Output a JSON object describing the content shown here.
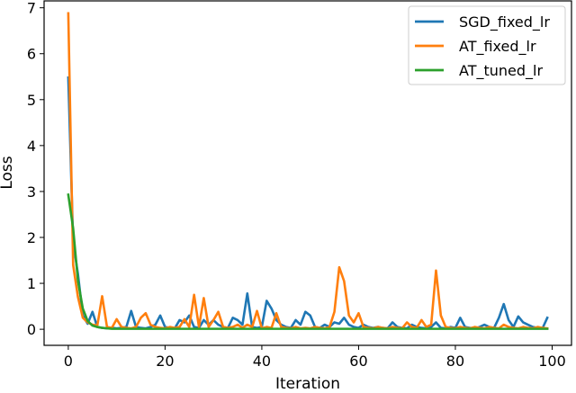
{
  "chart_data": {
    "type": "line",
    "title": "",
    "xlabel": "Iteration",
    "ylabel": "Loss",
    "xlim": [
      -5,
      104
    ],
    "ylim": [
      -0.35,
      7.15
    ],
    "xticks": [
      0,
      20,
      40,
      60,
      80,
      100
    ],
    "yticks": [
      0,
      1,
      2,
      3,
      4,
      5,
      6,
      7
    ],
    "grid": false,
    "legend_position": "top-right",
    "x": [
      0,
      1,
      2,
      3,
      4,
      5,
      6,
      7,
      8,
      9,
      10,
      11,
      12,
      13,
      14,
      15,
      16,
      17,
      18,
      19,
      20,
      21,
      22,
      23,
      24,
      25,
      26,
      27,
      28,
      29,
      30,
      31,
      32,
      33,
      34,
      35,
      36,
      37,
      38,
      39,
      40,
      41,
      42,
      43,
      44,
      45,
      46,
      47,
      48,
      49,
      50,
      51,
      52,
      53,
      54,
      55,
      56,
      57,
      58,
      59,
      60,
      61,
      62,
      63,
      64,
      65,
      66,
      67,
      68,
      69,
      70,
      71,
      72,
      73,
      74,
      75,
      76,
      77,
      78,
      79,
      80,
      81,
      82,
      83,
      84,
      85,
      86,
      87,
      88,
      89,
      90,
      91,
      92,
      93,
      94,
      95,
      96,
      97,
      98,
      99
    ],
    "series": [
      {
        "name": "SGD_fixed_lr",
        "color": "#1f77b4",
        "values": [
          5.48,
          1.9,
          1.2,
          0.3,
          0.12,
          0.38,
          0.05,
          0.03,
          0.02,
          0.03,
          0.02,
          0.03,
          0.05,
          0.4,
          0.05,
          0.03,
          0.02,
          0.05,
          0.1,
          0.3,
          0.05,
          0.03,
          0.02,
          0.2,
          0.15,
          0.3,
          0.05,
          0.03,
          0.2,
          0.1,
          0.2,
          0.1,
          0.05,
          0.03,
          0.25,
          0.2,
          0.1,
          0.78,
          0.05,
          0.03,
          0.05,
          0.62,
          0.45,
          0.2,
          0.1,
          0.05,
          0.03,
          0.2,
          0.1,
          0.38,
          0.3,
          0.05,
          0.03,
          0.1,
          0.05,
          0.15,
          0.12,
          0.25,
          0.1,
          0.05,
          0.03,
          0.1,
          0.05,
          0.03,
          0.05,
          0.03,
          0.02,
          0.15,
          0.05,
          0.03,
          0.02,
          0.1,
          0.05,
          0.03,
          0.02,
          0.05,
          0.15,
          0.03,
          0.02,
          0.05,
          0.03,
          0.25,
          0.05,
          0.03,
          0.02,
          0.05,
          0.1,
          0.05,
          0.03,
          0.25,
          0.55,
          0.2,
          0.05,
          0.28,
          0.15,
          0.1,
          0.05,
          0.03,
          0.02,
          0.25
        ]
      },
      {
        "name": "AT_fixed_lr",
        "color": "#ff7f0e",
        "values": [
          6.88,
          1.4,
          0.7,
          0.25,
          0.15,
          0.1,
          0.08,
          0.72,
          0.05,
          0.03,
          0.22,
          0.05,
          0.03,
          0.02,
          0.05,
          0.25,
          0.35,
          0.1,
          0.05,
          0.03,
          0.02,
          0.05,
          0.03,
          0.05,
          0.22,
          0.05,
          0.75,
          0.05,
          0.68,
          0.05,
          0.2,
          0.38,
          0.05,
          0.03,
          0.05,
          0.1,
          0.03,
          0.1,
          0.05,
          0.4,
          0.02,
          0.05,
          0.03,
          0.35,
          0.05,
          0.03,
          0.02,
          0.05,
          0.02,
          0.03,
          0.02,
          0.05,
          0.03,
          0.02,
          0.05,
          0.38,
          1.35,
          1.05,
          0.3,
          0.15,
          0.35,
          0.05,
          0.03,
          0.02,
          0.05,
          0.03,
          0.02,
          0.05,
          0.03,
          0.02,
          0.15,
          0.05,
          0.03,
          0.2,
          0.05,
          0.1,
          1.28,
          0.3,
          0.05,
          0.03,
          0.02,
          0.05,
          0.03,
          0.02,
          0.05,
          0.03,
          0.02,
          0.05,
          0.03,
          0.02,
          0.1,
          0.05,
          0.03,
          0.02,
          0.05,
          0.03,
          0.02,
          0.05,
          0.03,
          0.02
        ]
      },
      {
        "name": "AT_tuned_lr",
        "color": "#2ca02c",
        "values": [
          2.93,
          2.2,
          1.05,
          0.45,
          0.18,
          0.08,
          0.05,
          0.03,
          0.02,
          0.01,
          0.01,
          0.01,
          0.01,
          0.01,
          0.01,
          0.01,
          0.01,
          0.01,
          0.01,
          0.01,
          0.01,
          0.01,
          0.01,
          0.01,
          0.01,
          0.01,
          0.01,
          0.01,
          0.01,
          0.01,
          0.01,
          0.01,
          0.01,
          0.01,
          0.01,
          0.01,
          0.01,
          0.01,
          0.01,
          0.01,
          0.01,
          0.01,
          0.01,
          0.01,
          0.01,
          0.01,
          0.01,
          0.01,
          0.01,
          0.01,
          0.01,
          0.01,
          0.01,
          0.01,
          0.01,
          0.01,
          0.01,
          0.01,
          0.01,
          0.01,
          0.01,
          0.01,
          0.01,
          0.01,
          0.01,
          0.01,
          0.01,
          0.01,
          0.01,
          0.01,
          0.01,
          0.01,
          0.01,
          0.01,
          0.01,
          0.01,
          0.01,
          0.01,
          0.01,
          0.01,
          0.01,
          0.01,
          0.01,
          0.01,
          0.01,
          0.01,
          0.01,
          0.01,
          0.01,
          0.01,
          0.01,
          0.01,
          0.01,
          0.01,
          0.01,
          0.01,
          0.01,
          0.01,
          0.01,
          0.01
        ]
      }
    ]
  }
}
